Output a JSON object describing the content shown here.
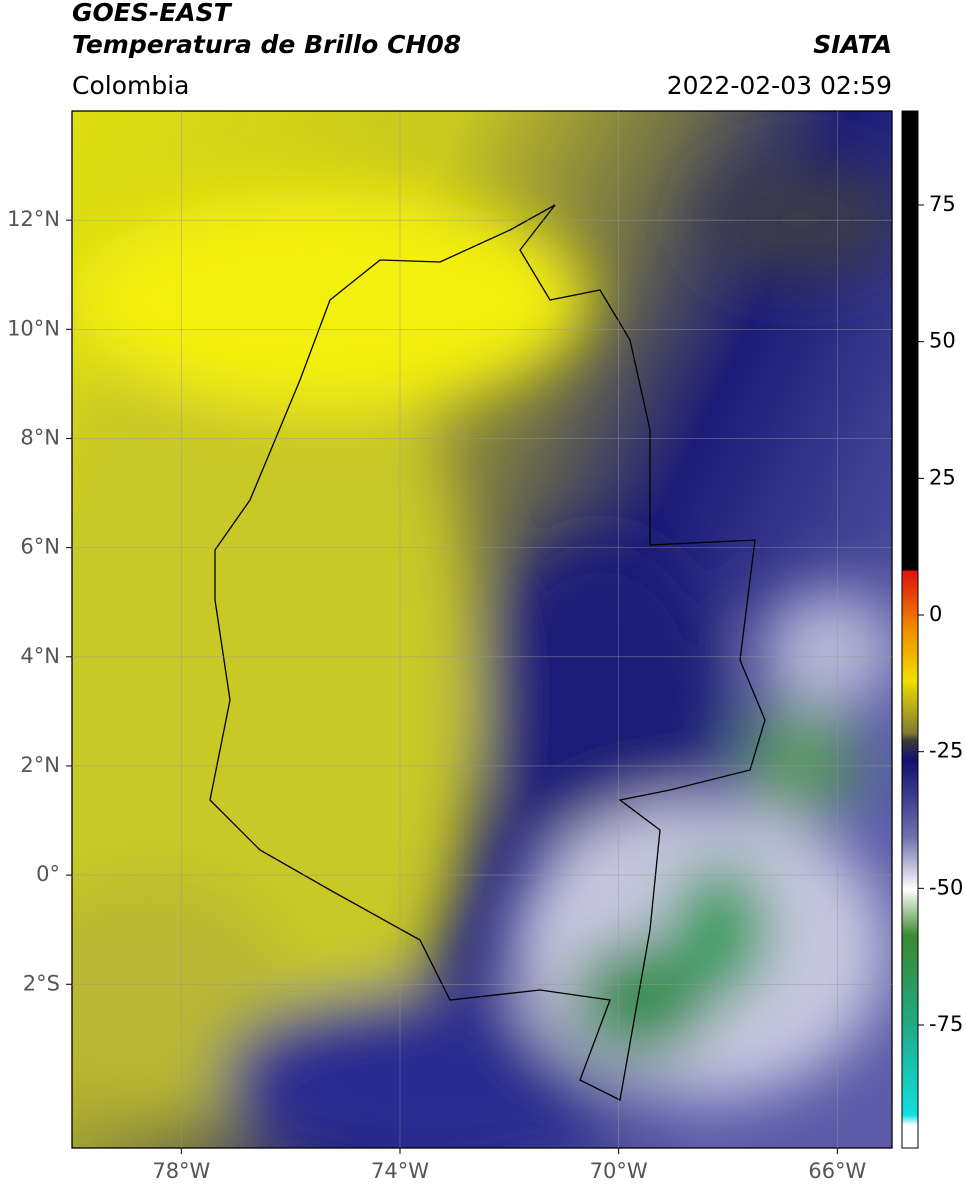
{
  "header": {
    "title": "GOES-EAST",
    "subtitle": "Temperatura de Brillo CH08",
    "agency": "SIATA",
    "region": "Colombia",
    "datetime": "2022-02-03 02:59"
  },
  "map": {
    "xlim": [
      -80,
      -65
    ],
    "ylim": [
      -5,
      14
    ],
    "xticks": [
      {
        "value": -78,
        "label": "78°W"
      },
      {
        "value": -74,
        "label": "74°W"
      },
      {
        "value": -70,
        "label": "70°W"
      },
      {
        "value": -66,
        "label": "66°W"
      }
    ],
    "yticks": [
      {
        "value": 12,
        "label": "12°N"
      },
      {
        "value": 10,
        "label": "10°N"
      },
      {
        "value": 8,
        "label": "8°N"
      },
      {
        "value": 6,
        "label": "6°N"
      },
      {
        "value": 4,
        "label": "4°N"
      },
      {
        "value": 2,
        "label": "2°N"
      },
      {
        "value": 0,
        "label": "0°"
      },
      {
        "value": -2,
        "label": "2°S"
      }
    ]
  },
  "colorbar": {
    "lim": [
      -97.5,
      92.2
    ],
    "ticks": [
      75,
      50,
      25,
      0,
      -25,
      -50,
      -75
    ]
  }
}
